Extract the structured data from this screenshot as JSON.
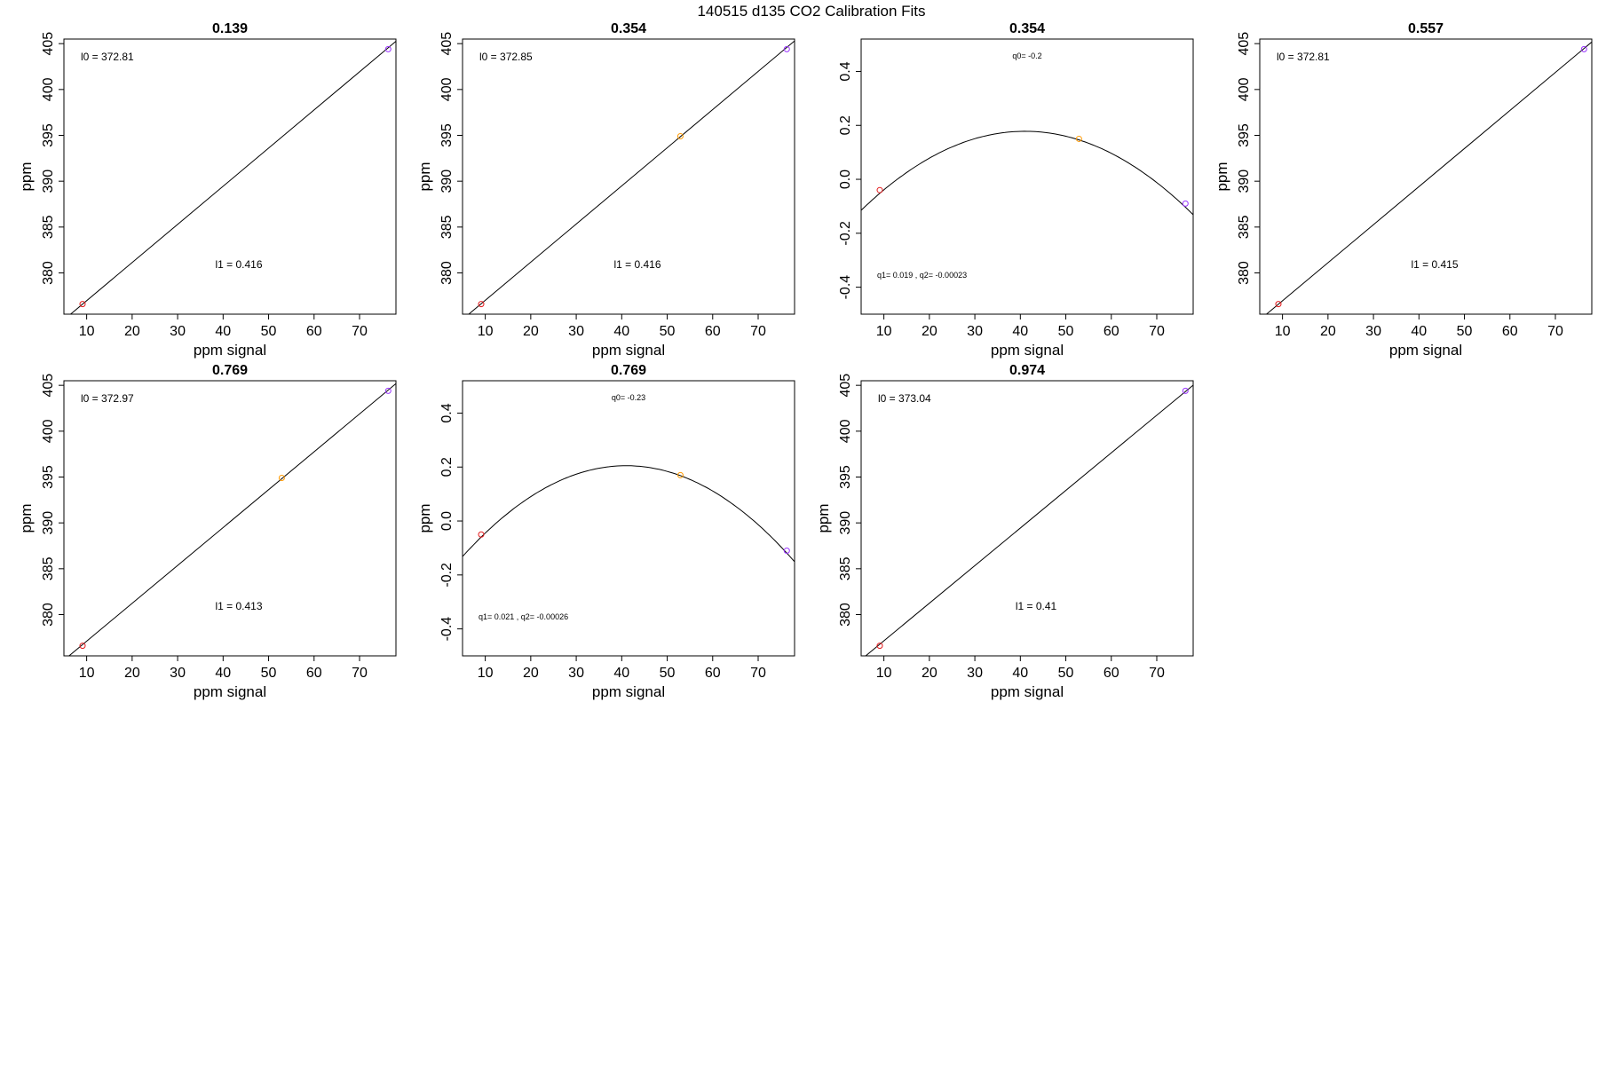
{
  "figure": {
    "title": "140515   d135   CO2 Calibration Fits"
  },
  "colors": {
    "red": "#e41a1c",
    "orange": "#ff9900",
    "purple": "#9933ff",
    "line": "#000000"
  },
  "chart_data": [
    {
      "type": "scatter",
      "fit": "linear",
      "title": "0.139",
      "xlabel": "ppm signal",
      "ylabel": "ppm",
      "xlim": [
        5,
        78
      ],
      "ylim": [
        375.5,
        405.5
      ],
      "xticks": [
        10,
        20,
        30,
        40,
        50,
        60,
        70
      ],
      "yticks": [
        380,
        385,
        390,
        395,
        400,
        405
      ],
      "points": [
        {
          "x": 9.1,
          "y": 376.6,
          "color": "red"
        },
        {
          "x": 76.3,
          "y": 404.4,
          "color": "purple"
        }
      ],
      "annotations": {
        "l0": "l0 =  372.81",
        "l1": "l1 =  0.416"
      },
      "coef": {
        "l0": 372.81,
        "l1": 0.416
      }
    },
    {
      "type": "scatter",
      "fit": "linear",
      "title": "0.354",
      "xlabel": "ppm signal",
      "ylabel": "ppm",
      "xlim": [
        5,
        78
      ],
      "ylim": [
        375.5,
        405.5
      ],
      "xticks": [
        10,
        20,
        30,
        40,
        50,
        60,
        70
      ],
      "yticks": [
        380,
        385,
        390,
        395,
        400,
        405
      ],
      "points": [
        {
          "x": 9.1,
          "y": 376.6,
          "color": "red"
        },
        {
          "x": 52.9,
          "y": 394.9,
          "color": "orange"
        },
        {
          "x": 76.3,
          "y": 404.4,
          "color": "purple"
        }
      ],
      "annotations": {
        "l0": "l0 =  372.85",
        "l1": "l1 =  0.416"
      },
      "coef": {
        "l0": 372.85,
        "l1": 0.416
      }
    },
    {
      "type": "scatter",
      "fit": "quadratic",
      "title": "0.354",
      "xlabel": "ppm signal",
      "ylabel": "",
      "xlim": [
        5,
        78
      ],
      "ylim": [
        -0.5,
        0.52
      ],
      "xticks": [
        10,
        20,
        30,
        40,
        50,
        60,
        70
      ],
      "yticks": [
        -0.4,
        -0.2,
        0.0,
        0.2,
        0.4
      ],
      "ytick_labels": [
        "-0.4",
        "-0.2",
        "0.0",
        "0.2",
        "0.4"
      ],
      "points": [
        {
          "x": 9.1,
          "y": -0.04,
          "color": "red"
        },
        {
          "x": 52.9,
          "y": 0.15,
          "color": "orange"
        },
        {
          "x": 76.3,
          "y": -0.09,
          "color": "purple"
        }
      ],
      "annotations": {
        "q0": "q0= -0.2",
        "q12": "q1= 0.019 , q2= -0.00023"
      },
      "curve": {
        "a": 0.178,
        "vertex": 41,
        "k": -0.000226
      }
    },
    {
      "type": "scatter",
      "fit": "linear",
      "title": "0.557",
      "xlabel": "ppm signal",
      "ylabel": "ppm",
      "xlim": [
        5,
        78
      ],
      "ylim": [
        375.5,
        405.5
      ],
      "xticks": [
        10,
        20,
        30,
        40,
        50,
        60,
        70
      ],
      "yticks": [
        380,
        385,
        390,
        395,
        400,
        405
      ],
      "points": [
        {
          "x": 9.1,
          "y": 376.6,
          "color": "red"
        },
        {
          "x": 76.3,
          "y": 404.4,
          "color": "purple"
        }
      ],
      "annotations": {
        "l0": "l0 =  372.81",
        "l1": "l1 =  0.415"
      },
      "coef": {
        "l0": 372.81,
        "l1": 0.415
      }
    },
    {
      "type": "scatter",
      "fit": "linear",
      "title": "0.769",
      "xlabel": "ppm signal",
      "ylabel": "ppm",
      "xlim": [
        5,
        78
      ],
      "ylim": [
        375.5,
        405.5
      ],
      "xticks": [
        10,
        20,
        30,
        40,
        50,
        60,
        70
      ],
      "yticks": [
        380,
        385,
        390,
        395,
        400,
        405
      ],
      "points": [
        {
          "x": 9.1,
          "y": 376.6,
          "color": "red"
        },
        {
          "x": 52.9,
          "y": 394.9,
          "color": "orange"
        },
        {
          "x": 76.3,
          "y": 404.4,
          "color": "purple"
        }
      ],
      "annotations": {
        "l0": "l0 =  372.97",
        "l1": "l1 =  0.413"
      },
      "coef": {
        "l0": 372.97,
        "l1": 0.413
      }
    },
    {
      "type": "scatter",
      "fit": "quadratic",
      "title": "0.769",
      "xlabel": "ppm signal",
      "ylabel": "ppm",
      "xlim": [
        5,
        78
      ],
      "ylim": [
        -0.5,
        0.52
      ],
      "xticks": [
        10,
        20,
        30,
        40,
        50,
        60,
        70
      ],
      "yticks": [
        -0.4,
        -0.2,
        0.0,
        0.2,
        0.4
      ],
      "ytick_labels": [
        "-0.4",
        "-0.2",
        "0.0",
        "0.2",
        "0.4"
      ],
      "points": [
        {
          "x": 9.1,
          "y": -0.05,
          "color": "red"
        },
        {
          "x": 52.9,
          "y": 0.17,
          "color": "orange"
        },
        {
          "x": 76.3,
          "y": -0.11,
          "color": "purple"
        }
      ],
      "annotations": {
        "q0": "q0= -0.23",
        "q12": "q1= 0.021 , q2= -0.00026"
      },
      "curve": {
        "a": 0.205,
        "vertex": 41,
        "k": -0.00026
      }
    },
    {
      "type": "scatter",
      "fit": "linear",
      "title": "0.974",
      "xlabel": "ppm signal",
      "ylabel": "ppm",
      "xlim": [
        5,
        78
      ],
      "ylim": [
        375.5,
        405.5
      ],
      "xticks": [
        10,
        20,
        30,
        40,
        50,
        60,
        70
      ],
      "yticks": [
        380,
        385,
        390,
        395,
        400,
        405
      ],
      "points": [
        {
          "x": 9.1,
          "y": 376.6,
          "color": "red"
        },
        {
          "x": 76.3,
          "y": 404.4,
          "color": "purple"
        }
      ],
      "annotations": {
        "l0": "l0 =  373.04",
        "l1": "l1 =  0.41"
      },
      "coef": {
        "l0": 373.04,
        "l1": 0.41
      }
    }
  ]
}
